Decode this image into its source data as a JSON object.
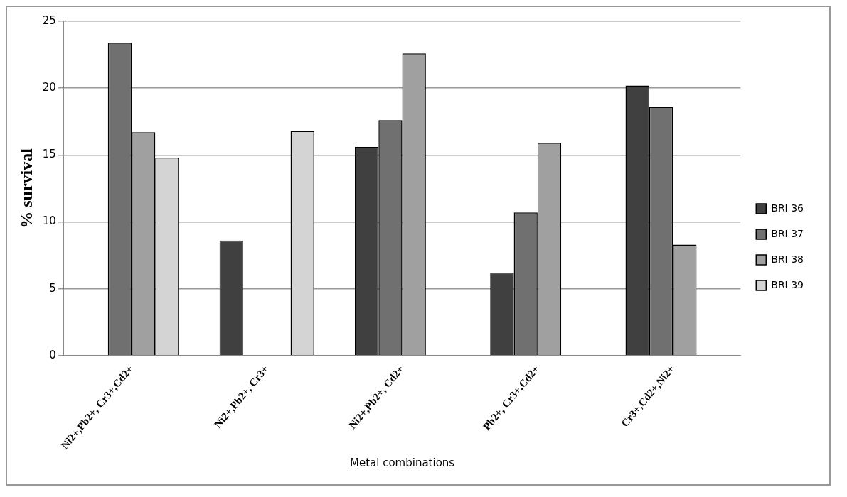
{
  "chart_data": {
    "type": "bar",
    "xlabel": "Metal combinations",
    "ylabel": "% survival",
    "categories": [
      "Ni2+,Pb2+, Cr3+,Cd2+",
      "Ni2+,Pb2+, Cr3+",
      "Ni2+,Pb2+, Cd2+",
      "Pb2+, Cr3+,Cd2+",
      "Cr3+,Cd2+,Ni2+"
    ],
    "series": [
      {
        "name": "BRI 36",
        "color": "#404040",
        "values": [
          null,
          8.6,
          15.6,
          6.2,
          20.2
        ]
      },
      {
        "name": "BRI 37",
        "color": "#707070",
        "values": [
          23.4,
          null,
          17.6,
          10.7,
          18.6
        ]
      },
      {
        "name": "BRI 38",
        "color": "#a0a0a0",
        "values": [
          16.7,
          null,
          22.6,
          15.9,
          8.3
        ]
      },
      {
        "name": "BRI 39",
        "color": "#d4d4d4",
        "values": [
          14.8,
          16.8,
          null,
          null,
          null
        ]
      }
    ],
    "ylim": [
      0,
      25
    ],
    "yticks": [
      0,
      5,
      10,
      15,
      20,
      25
    ],
    "grid": "y",
    "legend": "right"
  }
}
